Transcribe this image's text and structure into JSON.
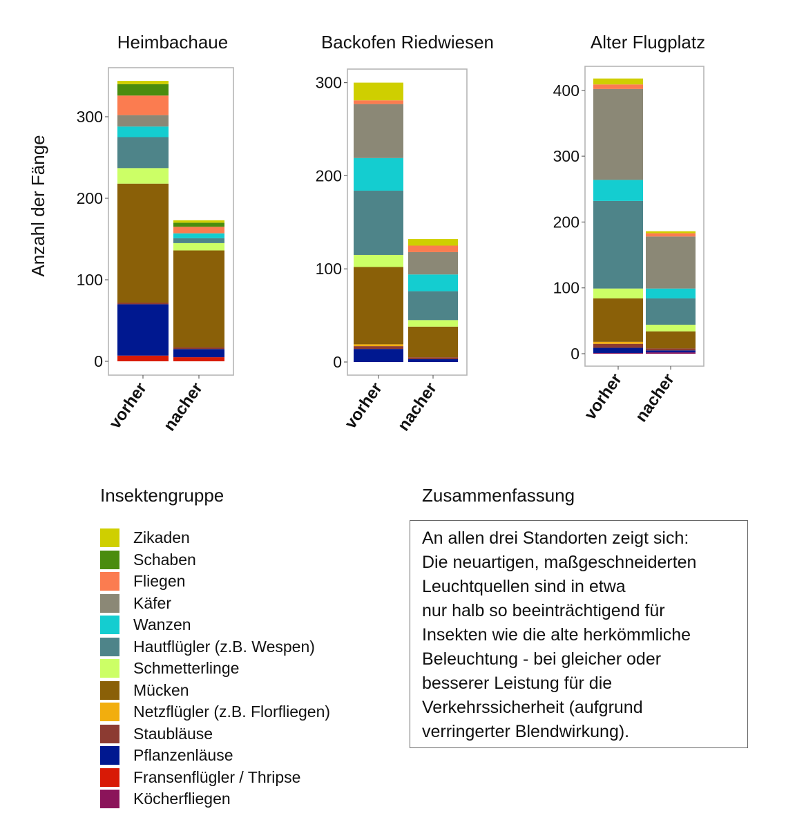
{
  "chart_data": [
    {
      "type": "bar",
      "stacked": true,
      "title": "Heimbachaue",
      "xlabel": "",
      "ylabel": "Anzahl der Fänge",
      "categories": [
        "vorher",
        "nacher"
      ],
      "ylim": [
        0,
        345
      ],
      "yticks": [
        0,
        100,
        200,
        300
      ],
      "grid": false,
      "series": [
        {
          "name": "Fransenflügler / Thripse",
          "values": [
            7,
            5
          ]
        },
        {
          "name": "Pflanzenläuse",
          "values": [
            63,
            10
          ]
        },
        {
          "name": "Staubläuse",
          "values": [
            2,
            2
          ]
        },
        {
          "name": "Mücken",
          "values": [
            146,
            119
          ]
        },
        {
          "name": "Schmetterlinge",
          "values": [
            19,
            9
          ]
        },
        {
          "name": "Hautflügler (z.B. Wespen)",
          "values": [
            38,
            6
          ]
        },
        {
          "name": "Wanzen",
          "values": [
            13,
            6
          ]
        },
        {
          "name": "Käfer",
          "values": [
            14,
            0
          ]
        },
        {
          "name": "Fliegen",
          "values": [
            24,
            8
          ]
        },
        {
          "name": "Schaben",
          "values": [
            14,
            5
          ]
        },
        {
          "name": "Zikaden",
          "values": [
            4,
            3
          ]
        }
      ]
    },
    {
      "type": "bar",
      "stacked": true,
      "title": "Backofen Riedwiesen",
      "xlabel": "",
      "ylabel": "",
      "categories": [
        "vorher",
        "nacher"
      ],
      "ylim": [
        0,
        300
      ],
      "yticks": [
        0,
        100,
        200,
        300
      ],
      "grid": false,
      "series": [
        {
          "name": "Pflanzenläuse",
          "values": [
            14,
            3
          ]
        },
        {
          "name": "Staubläuse",
          "values": [
            3,
            2
          ]
        },
        {
          "name": "Netzflügler (z.B. Florfliegen)",
          "values": [
            2,
            0
          ]
        },
        {
          "name": "Mücken",
          "values": [
            83,
            33
          ]
        },
        {
          "name": "Schmetterlinge",
          "values": [
            13,
            7
          ]
        },
        {
          "name": "Hautflügler (z.B. Wespen)",
          "values": [
            69,
            31
          ]
        },
        {
          "name": "Wanzen",
          "values": [
            35,
            18
          ]
        },
        {
          "name": "Käfer",
          "values": [
            58,
            24
          ]
        },
        {
          "name": "Fliegen",
          "values": [
            4,
            7
          ]
        },
        {
          "name": "Zikaden",
          "values": [
            19,
            7
          ]
        }
      ]
    },
    {
      "type": "bar",
      "stacked": true,
      "title": "Alter Flugplatz",
      "xlabel": "",
      "ylabel": "",
      "categories": [
        "vorher",
        "nacher"
      ],
      "ylim": [
        0,
        420
      ],
      "yticks": [
        0,
        100,
        200,
        300,
        400
      ],
      "grid": false,
      "series": [
        {
          "name": "Köcherfliegen",
          "values": [
            1,
            2
          ]
        },
        {
          "name": "Pflanzenläuse",
          "values": [
            8,
            3
          ]
        },
        {
          "name": "Staubläuse",
          "values": [
            6,
            3
          ]
        },
        {
          "name": "Netzflügler (z.B. Florfliegen)",
          "values": [
            3,
            0
          ]
        },
        {
          "name": "Mücken",
          "values": [
            66,
            26
          ]
        },
        {
          "name": "Schmetterlinge",
          "values": [
            15,
            10
          ]
        },
        {
          "name": "Hautflügler (z.B. Wespen)",
          "values": [
            133,
            40
          ]
        },
        {
          "name": "Wanzen",
          "values": [
            32,
            15
          ]
        },
        {
          "name": "Käfer",
          "values": [
            138,
            79
          ]
        },
        {
          "name": "Fliegen",
          "values": [
            7,
            5
          ]
        },
        {
          "name": "Zikaden",
          "values": [
            9,
            3
          ]
        }
      ]
    }
  ],
  "ylabel": "Anzahl der Fänge",
  "legend": {
    "title": "Insektengruppe",
    "items": [
      {
        "label": "Zikaden",
        "color": "#cfcf00"
      },
      {
        "label": "Schaben",
        "color": "#4a8c0e"
      },
      {
        "label": "Fliegen",
        "color": "#fb7c50"
      },
      {
        "label": "Käfer",
        "color": "#8b8876"
      },
      {
        "label": "Wanzen",
        "color": "#14cdd0"
      },
      {
        "label": "Hautflügler (z.B. Wespen)",
        "color": "#4e8489"
      },
      {
        "label": "Schmetterlinge",
        "color": "#ccff66"
      },
      {
        "label": "Mücken",
        "color": "#8a6008"
      },
      {
        "label": "Netzflügler (z.B. Florfliegen)",
        "color": "#f2ae0e"
      },
      {
        "label": "Staubläuse",
        "color": "#8c3b32"
      },
      {
        "label": "Pflanzenläuse",
        "color": "#001890"
      },
      {
        "label": "Fransenflügler / Thripse",
        "color": "#d81a06"
      },
      {
        "label": "Köcherfliegen",
        "color": "#8b145a"
      }
    ]
  },
  "summary": {
    "title": "Zusammenfassung",
    "lines": [
      "An allen drei Standorten zeigt sich:",
      "Die neuartigen, maßgeschneiderten",
      "Leuchtquellen sind in etwa",
      "nur halb so beeinträchtigend für",
      "Insekten wie die alte herkömmliche",
      "Beleuchtung - bei gleicher oder",
      "besserer Leistung für die",
      "Verkehrssicherheit (aufgrund",
      "verringerter Blendwirkung)."
    ]
  }
}
